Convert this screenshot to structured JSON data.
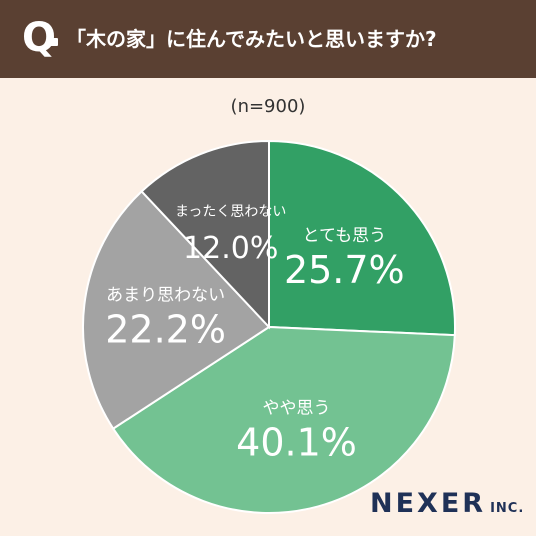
{
  "header": {
    "q_mark": "Q",
    "question": "「木の家」に住んでみたいと思いますか?"
  },
  "sample_label": "(n=900)",
  "logo": {
    "main": "NEXER",
    "sub": "INC."
  },
  "colors": {
    "header_bg": "#5a4032",
    "page_bg": "#fcf0e6",
    "とても思う": "#32a065",
    "やや思う": "#73c292",
    "あまり思わない": "#a3a3a3",
    "まったく思わない": "#636363"
  },
  "chart_data": {
    "type": "pie",
    "title": "「木の家」に住んでみたいと思いますか?",
    "subtitle": "(n=900)",
    "categories": [
      "とても思う",
      "やや思う",
      "あまり思わない",
      "まったく思わない"
    ],
    "values": [
      25.7,
      40.1,
      22.2,
      12.0
    ],
    "value_labels": [
      "25.7%",
      "40.1%",
      "22.2%",
      "12.0%"
    ],
    "start": "12 o'clock",
    "direction": "clockwise"
  }
}
